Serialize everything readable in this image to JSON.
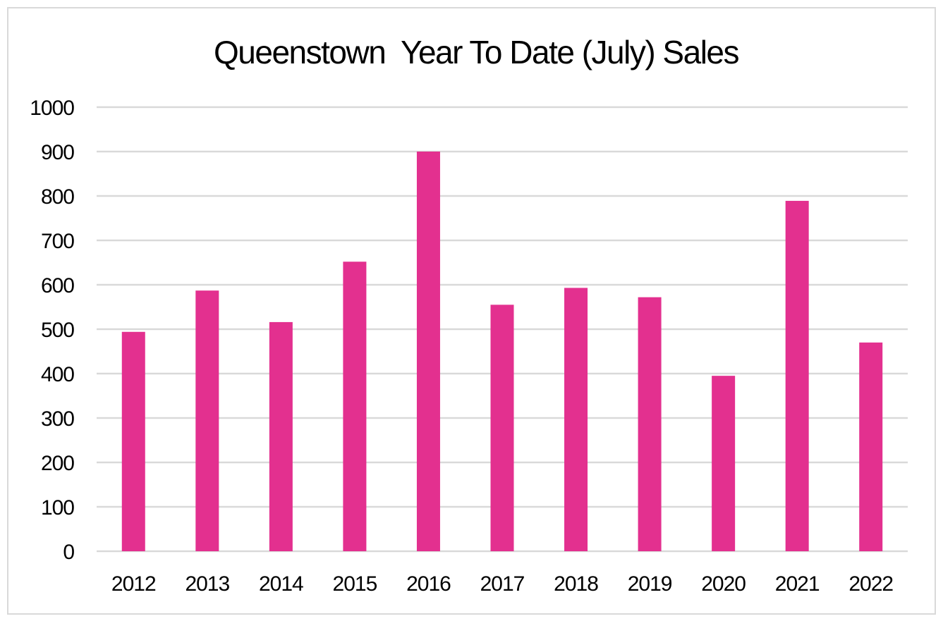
{
  "chart_data": {
    "type": "bar",
    "title": "Queenstown  Year To Date (July) Sales",
    "xlabel": "",
    "ylabel": "",
    "categories": [
      "2012",
      "2013",
      "2014",
      "2015",
      "2016",
      "2017",
      "2018",
      "2019",
      "2020",
      "2021",
      "2022"
    ],
    "values": [
      494,
      587,
      516,
      652,
      900,
      555,
      593,
      572,
      395,
      789,
      470
    ],
    "ylim": [
      0,
      1000
    ],
    "yticks": [
      "0",
      "100",
      "200",
      "300",
      "400",
      "500",
      "600",
      "700",
      "800",
      "900",
      "1000"
    ],
    "grid": true,
    "legend": "none"
  },
  "colors": {
    "bar": "#e3308f",
    "grid": "#d9d9d9",
    "text": "#000000",
    "border": "#d9d9d9"
  }
}
